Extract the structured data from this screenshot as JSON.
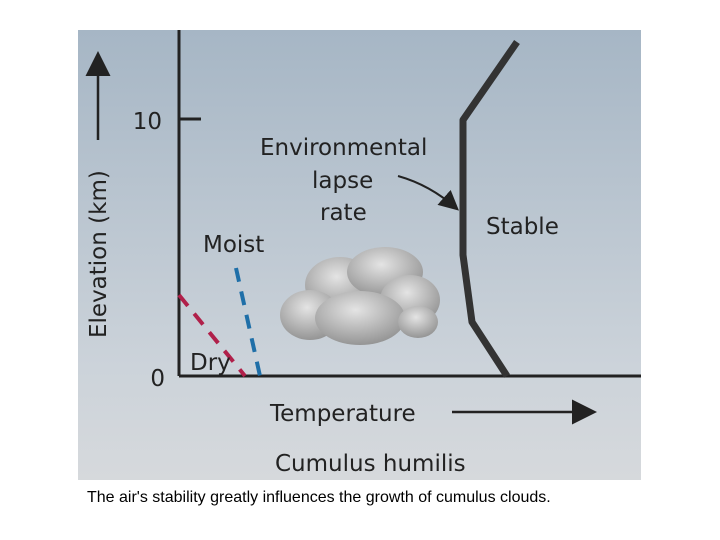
{
  "diagram": {
    "y_axis": {
      "label": "Elevation (km)",
      "ticks": [
        10,
        0
      ]
    },
    "x_axis": {
      "label": "Temperature"
    },
    "environmental_lapse_rate": [
      "Environmental",
      "lapse",
      "rate"
    ],
    "stable": "Stable",
    "moist": "Moist",
    "dry": "Dry",
    "subtitle": "Cumulus humilis"
  },
  "caption": "The air's stability greatly influences the growth of cumulus clouds."
}
